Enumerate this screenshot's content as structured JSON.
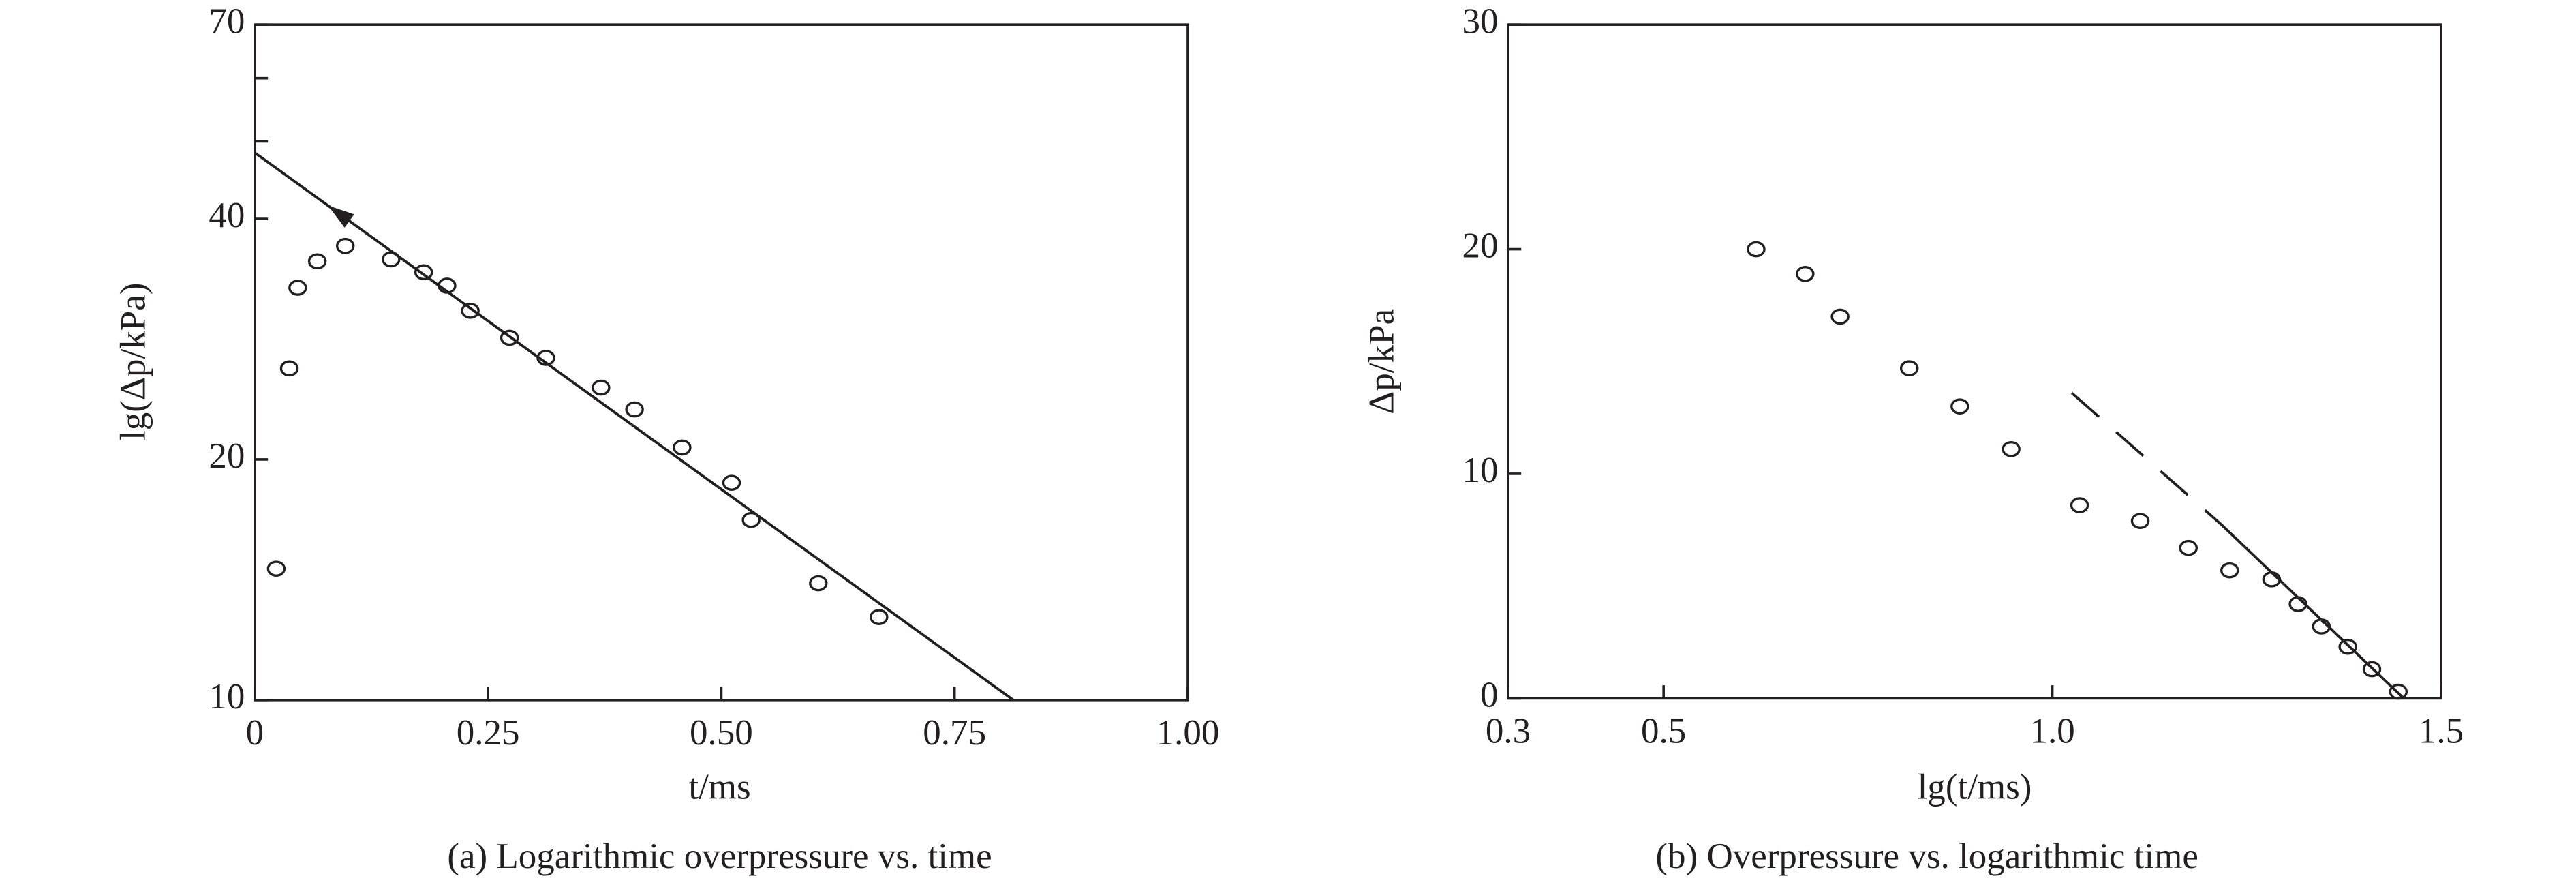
{
  "chart_data": [
    {
      "type": "scatter",
      "title": "(a) Logarithmic overpressure vs. time",
      "x_label": "t/ms",
      "y_label": "lg(Δp/kPa)",
      "xlim": [
        0,
        1
      ],
      "xticks": [
        0,
        0.25,
        {
          "value": 0.5,
          "label": "0.50"
        },
        0.75,
        {
          "value": 1,
          "label": "1.00"
        }
      ],
      "ylim": [
        10,
        70
      ],
      "yticks": [
        10,
        20,
        40,
        70
      ],
      "minor_yticks": [
        50,
        60
      ],
      "yscale": "log",
      "series": [
        {
          "mode": "markers",
          "color": "#231f20",
          "x": [
            0.023,
            0.037,
            0.046,
            0.067,
            0.097,
            0.146,
            0.181,
            0.206,
            0.231,
            0.273,
            0.312,
            0.371,
            0.407,
            0.458,
            0.511,
            0.532,
            0.604,
            0.669
          ],
          "values": [
            14.6,
            26.0,
            32.8,
            35.4,
            37.0,
            35.6,
            34.3,
            33.0,
            30.7,
            28.4,
            26.8,
            24.6,
            23.1,
            20.7,
            18.7,
            16.8,
            14.0,
            12.7
          ]
        },
        {
          "mode": "line",
          "color": "#231f20",
          "style": "solid",
          "arrow": true,
          "x": [
            0,
            0.813
          ],
          "values": [
            48.4,
            10
          ]
        }
      ]
    },
    {
      "type": "scatter",
      "title": "(b) Overpressure vs. logarithmic time",
      "x_label": "lg(t/ms)",
      "y_label": "Δp/kPa",
      "xlim": [
        0.3,
        1.5
      ],
      "xticks": [
        0.3,
        0.5,
        {
          "value": 1,
          "label": "1.0"
        },
        1.5
      ],
      "ylim": [
        0,
        30
      ],
      "yticks": [
        0,
        10,
        20,
        30
      ],
      "yscale": "linear",
      "series": [
        {
          "mode": "markers",
          "color": "#231f20",
          "x": [
            0.619,
            0.682,
            0.727,
            0.816,
            0.881,
            0.947,
            1.035,
            1.113,
            1.175,
            1.228,
            1.282,
            1.316,
            1.346,
            1.38,
            1.411,
            1.445
          ],
          "values": [
            20.0,
            18.9,
            17.0,
            14.7,
            13.0,
            11.1,
            8.6,
            7.9,
            6.7,
            5.7,
            5.3,
            4.2,
            3.2,
            2.3,
            1.3,
            0.3
          ]
        },
        {
          "mode": "line",
          "color": "#231f20",
          "style": "dashed",
          "x": [
            1.025,
            1.217
          ],
          "values": [
            13.6,
            7.75
          ]
        },
        {
          "mode": "line",
          "color": "#231f20",
          "style": "solid",
          "x": [
            1.217,
            1.452
          ],
          "values": [
            7.75,
            0
          ]
        }
      ]
    }
  ]
}
